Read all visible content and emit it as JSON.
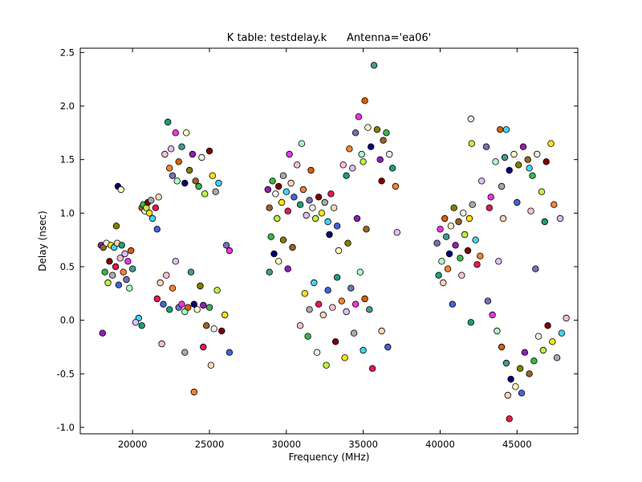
{
  "window": {
    "background": "#ffffff"
  },
  "chart_data": {
    "type": "scatter",
    "title": "K table: testdelay.k      Antenna='ea06'",
    "xlabel": "Frequency (MHz)",
    "ylabel": "Delay (nsec)",
    "xlim": [
      16600,
      48950
    ],
    "ylim": [
      -1.06,
      2.54
    ],
    "xticks": [
      20000,
      25000,
      30000,
      35000,
      40000,
      45000
    ],
    "yticks": [
      -1.0,
      -0.5,
      0.0,
      0.5,
      1.0,
      1.5,
      2.0,
      2.5
    ],
    "grid": false,
    "legend": "none",
    "marker": {
      "shape": "circle",
      "radius": 3.8,
      "edge_color": "#000000",
      "edge_width": 0.8
    },
    "palette": [
      "#e6194b",
      "#3cb44b",
      "#4363d8",
      "#ffe119",
      "#f58231",
      "#911eb4",
      "#42d4f4",
      "#f032e6",
      "#bfef45",
      "#fabed4",
      "#469990",
      "#dcbeff",
      "#9a6324",
      "#fffac8",
      "#800000",
      "#aaffc3",
      "#808000",
      "#ffd8b1",
      "#000075",
      "#a9a9a9",
      "#eeeeee",
      "#1b9e77",
      "#d95f02",
      "#7570b3"
    ],
    "points": [
      [
        17950,
        0.7,
        5
      ],
      [
        18100,
        0.68,
        12
      ],
      [
        18200,
        0.45,
        1
      ],
      [
        18300,
        0.72,
        20
      ],
      [
        18400,
        0.35,
        8
      ],
      [
        18500,
        0.55,
        14
      ],
      [
        18600,
        0.7,
        3
      ],
      [
        18700,
        0.42,
        19
      ],
      [
        18800,
        0.68,
        6
      ],
      [
        18900,
        0.5,
        0
      ],
      [
        19000,
        0.72,
        17
      ],
      [
        19100,
        0.33,
        2
      ],
      [
        19200,
        0.58,
        9
      ],
      [
        19300,
        0.7,
        21
      ],
      [
        19400,
        0.45,
        4
      ],
      [
        19500,
        0.62,
        11
      ],
      [
        19600,
        0.38,
        23
      ],
      [
        19700,
        0.55,
        7
      ],
      [
        19800,
        0.3,
        15
      ],
      [
        19900,
        0.65,
        22
      ],
      [
        20000,
        0.48,
        10
      ],
      [
        19050,
        1.25,
        18
      ],
      [
        19250,
        1.22,
        13
      ],
      [
        18950,
        0.88,
        16
      ],
      [
        18050,
        -0.12,
        5
      ],
      [
        20600,
        1.05,
        12
      ],
      [
        20700,
        1.08,
        1
      ],
      [
        20800,
        1.02,
        20
      ],
      [
        20900,
        1.05,
        8
      ],
      [
        21000,
        1.1,
        14
      ],
      [
        21100,
        1.0,
        3
      ],
      [
        21200,
        1.12,
        19
      ],
      [
        21300,
        0.95,
        6
      ],
      [
        21500,
        1.05,
        0
      ],
      [
        21700,
        1.15,
        17
      ],
      [
        21600,
        0.85,
        2
      ],
      [
        22100,
        1.55,
        9
      ],
      [
        22300,
        1.85,
        21
      ],
      [
        22400,
        1.42,
        4
      ],
      [
        22500,
        1.6,
        11
      ],
      [
        22600,
        1.35,
        23
      ],
      [
        22800,
        1.75,
        7
      ],
      [
        22900,
        1.3,
        15
      ],
      [
        23000,
        1.48,
        22
      ],
      [
        23200,
        1.62,
        10
      ],
      [
        23400,
        1.28,
        18
      ],
      [
        23500,
        1.75,
        13
      ],
      [
        23700,
        1.4,
        16
      ],
      [
        23900,
        1.55,
        5
      ],
      [
        24100,
        1.3,
        12
      ],
      [
        24300,
        1.25,
        1
      ],
      [
        24500,
        1.52,
        20
      ],
      [
        24700,
        1.18,
        8
      ],
      [
        25000,
        1.58,
        14
      ],
      [
        25200,
        1.35,
        3
      ],
      [
        25400,
        1.2,
        19
      ],
      [
        25600,
        1.28,
        6
      ],
      [
        21600,
        0.2,
        0
      ],
      [
        21800,
        0.35,
        17
      ],
      [
        22000,
        0.15,
        2
      ],
      [
        22200,
        0.42,
        9
      ],
      [
        22400,
        0.1,
        21
      ],
      [
        22600,
        0.3,
        4
      ],
      [
        22800,
        0.55,
        11
      ],
      [
        23000,
        0.12,
        23
      ],
      [
        23200,
        0.15,
        7
      ],
      [
        23400,
        0.08,
        15
      ],
      [
        23600,
        0.12,
        22
      ],
      [
        23800,
        0.45,
        10
      ],
      [
        24000,
        0.15,
        18
      ],
      [
        24200,
        0.1,
        13
      ],
      [
        24400,
        0.32,
        16
      ],
      [
        24600,
        0.14,
        5
      ],
      [
        24800,
        -0.05,
        12
      ],
      [
        25000,
        0.12,
        1
      ],
      [
        25300,
        -0.08,
        20
      ],
      [
        25500,
        0.28,
        8
      ],
      [
        25800,
        -0.1,
        14
      ],
      [
        26000,
        0.05,
        3
      ],
      [
        23400,
        -0.3,
        19
      ],
      [
        24000,
        -0.67,
        4
      ],
      [
        24600,
        -0.25,
        0
      ],
      [
        25100,
        -0.42,
        17
      ],
      [
        26300,
        -0.3,
        2
      ],
      [
        21900,
        -0.22,
        9
      ],
      [
        20600,
        -0.05,
        21
      ],
      [
        20400,
        0.02,
        6
      ],
      [
        20200,
        -0.02,
        11
      ],
      [
        26100,
        0.7,
        23
      ],
      [
        26300,
        0.65,
        7
      ],
      [
        28800,
        1.22,
        5
      ],
      [
        28900,
        1.05,
        12
      ],
      [
        29100,
        1.3,
        1
      ],
      [
        29300,
        1.18,
        20
      ],
      [
        29400,
        0.95,
        8
      ],
      [
        29500,
        1.25,
        14
      ],
      [
        29700,
        1.1,
        3
      ],
      [
        29800,
        1.35,
        19
      ],
      [
        30000,
        1.2,
        6
      ],
      [
        30100,
        1.02,
        0
      ],
      [
        30300,
        1.28,
        17
      ],
      [
        30500,
        1.15,
        2
      ],
      [
        30700,
        1.45,
        9
      ],
      [
        30900,
        1.08,
        21
      ],
      [
        31100,
        1.22,
        4
      ],
      [
        31300,
        0.98,
        11
      ],
      [
        31500,
        1.12,
        23
      ],
      [
        30200,
        1.55,
        7
      ],
      [
        31000,
        1.65,
        15
      ],
      [
        31600,
        1.4,
        22
      ],
      [
        28900,
        0.45,
        10
      ],
      [
        29200,
        0.62,
        18
      ],
      [
        29500,
        0.55,
        13
      ],
      [
        29800,
        0.75,
        16
      ],
      [
        30100,
        0.48,
        5
      ],
      [
        30400,
        0.68,
        12
      ],
      [
        29000,
        0.78,
        1
      ],
      [
        31700,
        1.05,
        20
      ],
      [
        31900,
        0.95,
        8
      ],
      [
        32100,
        1.15,
        14
      ],
      [
        32300,
        1.0,
        3
      ],
      [
        32500,
        1.1,
        19
      ],
      [
        32700,
        0.92,
        6
      ],
      [
        32900,
        1.18,
        0
      ],
      [
        33100,
        1.05,
        17
      ],
      [
        33300,
        0.88,
        2
      ],
      [
        33700,
        1.45,
        9
      ],
      [
        33900,
        1.35,
        21
      ],
      [
        34100,
        1.6,
        4
      ],
      [
        34300,
        1.42,
        11
      ],
      [
        34500,
        1.75,
        23
      ],
      [
        34700,
        1.9,
        7
      ],
      [
        34900,
        1.55,
        15
      ],
      [
        35100,
        2.05,
        22
      ],
      [
        35300,
        1.8,
        13
      ],
      [
        35500,
        1.62,
        18
      ],
      [
        35700,
        2.38,
        10
      ],
      [
        35900,
        1.78,
        16
      ],
      [
        36100,
        1.5,
        5
      ],
      [
        36300,
        1.68,
        12
      ],
      [
        36500,
        1.75,
        1
      ],
      [
        36700,
        1.55,
        20
      ],
      [
        35000,
        1.48,
        8
      ],
      [
        36200,
        1.3,
        14
      ],
      [
        31200,
        0.25,
        3
      ],
      [
        31500,
        0.1,
        19
      ],
      [
        31800,
        0.35,
        6
      ],
      [
        32100,
        0.15,
        0
      ],
      [
        32400,
        0.05,
        17
      ],
      [
        32700,
        0.28,
        2
      ],
      [
        33000,
        0.12,
        9
      ],
      [
        33300,
        0.4,
        21
      ],
      [
        33600,
        0.18,
        4
      ],
      [
        33900,
        0.08,
        11
      ],
      [
        34200,
        0.3,
        23
      ],
      [
        34500,
        0.15,
        7
      ],
      [
        34800,
        0.45,
        15
      ],
      [
        35100,
        0.2,
        22
      ],
      [
        35400,
        0.1,
        10
      ],
      [
        32800,
        0.8,
        18
      ],
      [
        33400,
        0.65,
        13
      ],
      [
        34000,
        0.72,
        16
      ],
      [
        34600,
        0.95,
        5
      ],
      [
        35200,
        0.85,
        12
      ],
      [
        31400,
        -0.15,
        1
      ],
      [
        32000,
        -0.3,
        20
      ],
      [
        32600,
        -0.42,
        8
      ],
      [
        33200,
        -0.2,
        14
      ],
      [
        33800,
        -0.35,
        3
      ],
      [
        34400,
        -0.12,
        19
      ],
      [
        35000,
        -0.28,
        6
      ],
      [
        35600,
        -0.45,
        0
      ],
      [
        36200,
        -0.1,
        17
      ],
      [
        36600,
        -0.25,
        2
      ],
      [
        30900,
        -0.05,
        9
      ],
      [
        36900,
        1.42,
        21
      ],
      [
        37100,
        1.25,
        4
      ],
      [
        37200,
        0.82,
        11
      ],
      [
        39800,
        0.72,
        23
      ],
      [
        40000,
        0.85,
        7
      ],
      [
        40100,
        0.55,
        15
      ],
      [
        40300,
        0.95,
        22
      ],
      [
        40400,
        0.78,
        10
      ],
      [
        40600,
        0.62,
        18
      ],
      [
        40700,
        0.88,
        13
      ],
      [
        40900,
        1.05,
        16
      ],
      [
        41000,
        0.7,
        5
      ],
      [
        41200,
        0.92,
        12
      ],
      [
        41300,
        0.58,
        1
      ],
      [
        41500,
        1.0,
        20
      ],
      [
        41600,
        0.8,
        8
      ],
      [
        41800,
        0.65,
        14
      ],
      [
        41900,
        0.95,
        3
      ],
      [
        42100,
        1.08,
        19
      ],
      [
        42300,
        0.75,
        6
      ],
      [
        42400,
        0.52,
        0
      ],
      [
        40200,
        0.35,
        17
      ],
      [
        40800,
        0.15,
        2
      ],
      [
        41400,
        0.42,
        9
      ],
      [
        42000,
        -0.02,
        21
      ],
      [
        40500,
        0.48,
        4
      ],
      [
        42700,
        1.3,
        11
      ],
      [
        43000,
        1.62,
        23
      ],
      [
        43300,
        1.15,
        7
      ],
      [
        43600,
        1.48,
        15
      ],
      [
        43900,
        1.78,
        22
      ],
      [
        44200,
        1.52,
        10
      ],
      [
        44500,
        1.4,
        18
      ],
      [
        44800,
        1.55,
        13
      ],
      [
        45100,
        1.45,
        16
      ],
      [
        45400,
        1.62,
        5
      ],
      [
        45700,
        1.5,
        12
      ],
      [
        46000,
        1.35,
        1
      ],
      [
        46300,
        1.55,
        20
      ],
      [
        46600,
        1.2,
        8
      ],
      [
        46900,
        1.48,
        14
      ],
      [
        47200,
        1.65,
        3
      ],
      [
        44000,
        1.25,
        19
      ],
      [
        45800,
        1.42,
        6
      ],
      [
        43200,
        1.05,
        0
      ],
      [
        44100,
        0.95,
        17
      ],
      [
        45000,
        1.1,
        2
      ],
      [
        45900,
        1.02,
        9
      ],
      [
        46800,
        0.92,
        21
      ],
      [
        47400,
        1.08,
        4
      ],
      [
        47800,
        0.95,
        11
      ],
      [
        43100,
        0.18,
        23
      ],
      [
        43400,
        0.05,
        7
      ],
      [
        43700,
        -0.1,
        15
      ],
      [
        44000,
        -0.25,
        22
      ],
      [
        44300,
        -0.4,
        10
      ],
      [
        44600,
        -0.55,
        18
      ],
      [
        44900,
        -0.62,
        13
      ],
      [
        45200,
        -0.45,
        16
      ],
      [
        45500,
        -0.3,
        5
      ],
      [
        45800,
        -0.5,
        12
      ],
      [
        46100,
        -0.38,
        1
      ],
      [
        46400,
        -0.15,
        20
      ],
      [
        46700,
        -0.28,
        8
      ],
      [
        47000,
        -0.05,
        14
      ],
      [
        47300,
        -0.2,
        3
      ],
      [
        47600,
        -0.35,
        19
      ],
      [
        47900,
        -0.12,
        6
      ],
      [
        48200,
        0.02,
        9
      ],
      [
        44400,
        -0.7,
        17
      ],
      [
        45300,
        -0.68,
        2
      ],
      [
        44500,
        -0.92,
        0
      ],
      [
        39900,
        0.42,
        21
      ],
      [
        42600,
        0.6,
        4
      ],
      [
        43800,
        0.55,
        11
      ],
      [
        46200,
        0.48,
        23
      ],
      [
        42050,
        1.65,
        8
      ],
      [
        44300,
        1.78,
        6
      ],
      [
        42000,
        1.88,
        20
      ]
    ]
  }
}
